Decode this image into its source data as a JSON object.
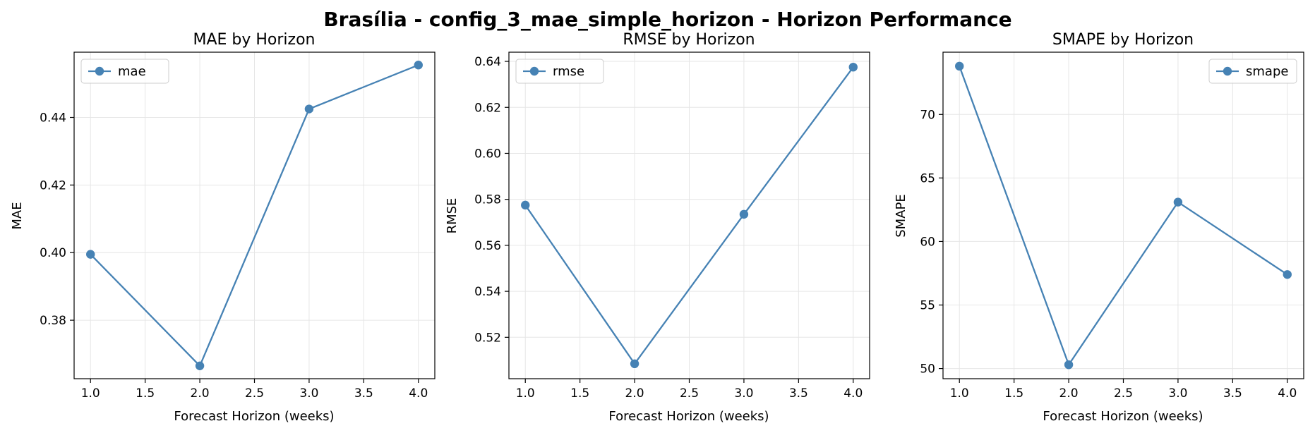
{
  "figure": {
    "title": "Brasília - config_3_mae_simple_horizon - Horizon Performance"
  },
  "colors": {
    "line": "#4682b4",
    "grid": "#e6e6e6",
    "legend_border": "#cccccc"
  },
  "chart_data": [
    {
      "type": "line",
      "title": "MAE by Horizon",
      "xlabel": "Forecast Horizon (weeks)",
      "ylabel": "MAE",
      "x": [
        1,
        2,
        3,
        4
      ],
      "series": [
        {
          "name": "mae",
          "values": [
            0.3995,
            0.3665,
            0.4425,
            0.4555
          ]
        }
      ],
      "xlim": [
        0.85,
        4.15
      ],
      "ylim": [
        0.3627,
        0.4593
      ],
      "xticks": [
        1.0,
        1.5,
        2.0,
        2.5,
        3.0,
        3.5,
        4.0
      ],
      "xtick_labels": [
        "1.0",
        "1.5",
        "2.0",
        "2.5",
        "3.0",
        "3.5",
        "4.0"
      ],
      "yticks": [
        0.38,
        0.4,
        0.42,
        0.44
      ],
      "ytick_labels": [
        "0.38",
        "0.40",
        "0.42",
        "0.44"
      ],
      "legend": "top-left",
      "grid": true
    },
    {
      "type": "line",
      "title": "RMSE by Horizon",
      "xlabel": "Forecast Horizon (weeks)",
      "ylabel": "RMSE",
      "x": [
        1,
        2,
        3,
        4
      ],
      "series": [
        {
          "name": "rmse",
          "values": [
            0.5775,
            0.5085,
            0.5735,
            0.6375
          ]
        }
      ],
      "xlim": [
        0.85,
        4.15
      ],
      "ylim": [
        0.502,
        0.644
      ],
      "xticks": [
        1.0,
        1.5,
        2.0,
        2.5,
        3.0,
        3.5,
        4.0
      ],
      "xtick_labels": [
        "1.0",
        "1.5",
        "2.0",
        "2.5",
        "3.0",
        "3.5",
        "4.0"
      ],
      "yticks": [
        0.52,
        0.54,
        0.56,
        0.58,
        0.6,
        0.62,
        0.64
      ],
      "ytick_labels": [
        "0.52",
        "0.54",
        "0.56",
        "0.58",
        "0.60",
        "0.62",
        "0.64"
      ],
      "legend": "top-left",
      "grid": true
    },
    {
      "type": "line",
      "title": "SMAPE by Horizon",
      "xlabel": "Forecast Horizon (weeks)",
      "ylabel": "SMAPE",
      "x": [
        1,
        2,
        3,
        4
      ],
      "series": [
        {
          "name": "smape",
          "values": [
            73.8,
            50.3,
            63.1,
            57.4
          ]
        }
      ],
      "xlim": [
        0.85,
        4.15
      ],
      "ylim": [
        49.2,
        74.9
      ],
      "xticks": [
        1.0,
        1.5,
        2.0,
        2.5,
        3.0,
        3.5,
        4.0
      ],
      "xtick_labels": [
        "1.0",
        "1.5",
        "2.0",
        "2.5",
        "3.0",
        "3.5",
        "4.0"
      ],
      "yticks": [
        50,
        55,
        60,
        65,
        70
      ],
      "ytick_labels": [
        "50",
        "55",
        "60",
        "65",
        "70"
      ],
      "legend": "top-right",
      "grid": true
    }
  ]
}
